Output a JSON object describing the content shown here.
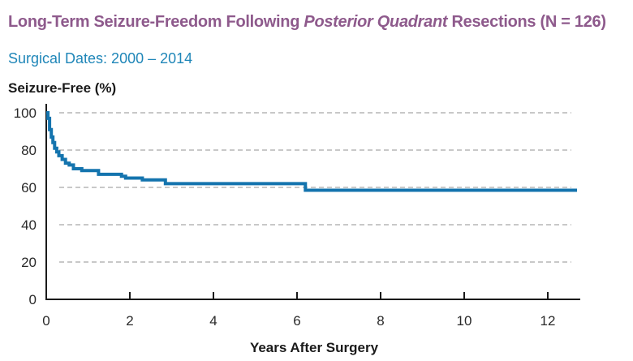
{
  "header": {
    "title_pre": "Long-Term Seizure-Freedom Following ",
    "title_em": "Posterior Quadrant",
    "title_post": " Resections (N = 126)",
    "subtitle": "Surgical Dates: 2000 – 2014"
  },
  "colors": {
    "title": "#8e5a8c",
    "subtitle": "#1f86b8",
    "series": "#1474ae",
    "grid": "#a8a8a8",
    "axis": "#1a1a1a"
  },
  "chart_data": {
    "type": "line",
    "step": true,
    "title": "Long-Term Seizure-Freedom Following Posterior Quadrant Resections (N = 126)",
    "subtitle": "Surgical Dates: 2000 – 2014",
    "xlabel": "Years After Surgery",
    "ylabel": "Seizure-Free (%)",
    "xlim": [
      0,
      12.7
    ],
    "ylim": [
      0,
      100
    ],
    "xticks": [
      0,
      2,
      4,
      6,
      8,
      10,
      12
    ],
    "yticks": [
      0,
      20,
      40,
      60,
      80,
      100
    ],
    "grid": "horizontal-dashed",
    "series": [
      {
        "name": "",
        "x": [
          0,
          0.04,
          0.08,
          0.12,
          0.16,
          0.2,
          0.25,
          0.3,
          0.38,
          0.46,
          0.55,
          0.65,
          0.85,
          1.25,
          1.8,
          1.9,
          2.3,
          2.85,
          6.2,
          12.7
        ],
        "y": [
          100,
          97,
          91,
          87,
          84,
          81,
          79,
          77,
          75,
          73,
          72,
          70,
          69,
          67,
          66,
          65,
          64,
          62,
          58.5,
          58.5
        ]
      }
    ]
  }
}
